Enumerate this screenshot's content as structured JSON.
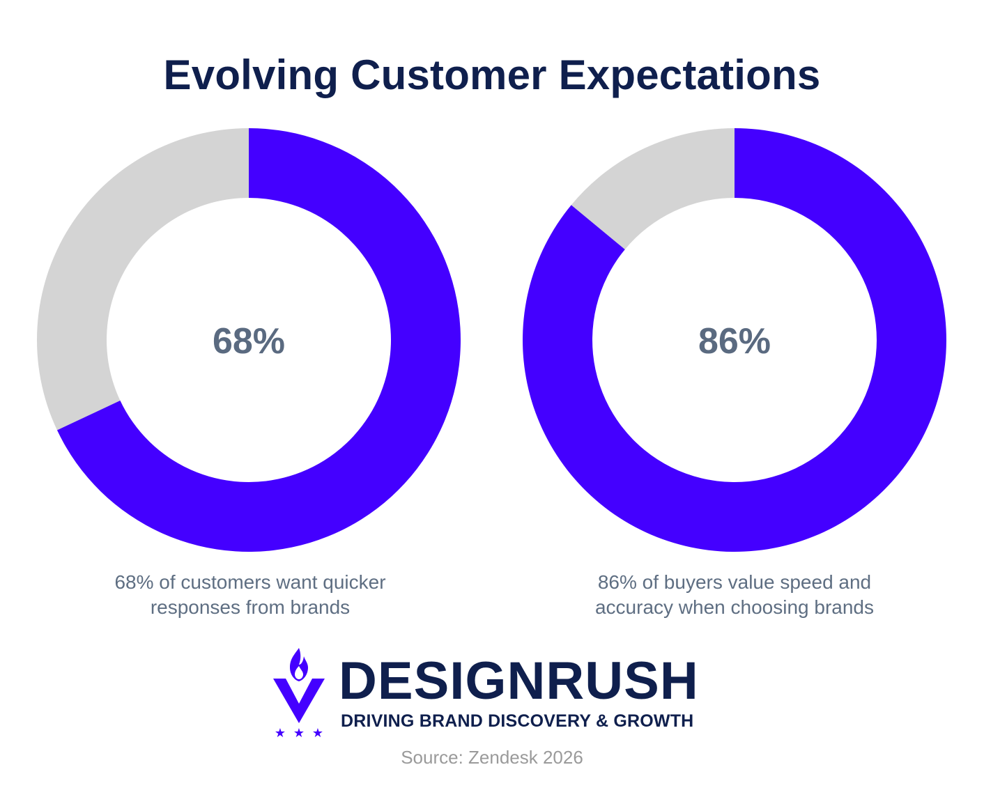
{
  "title": "Evolving Customer Expectations",
  "colors": {
    "accent": "#4400ff",
    "remainder": "#d4d4d4",
    "title": "#0f1f4d",
    "center_label": "#5a6a80",
    "caption": "#5e6e82",
    "source": "#9a9a9a"
  },
  "chart_data": [
    {
      "type": "pie",
      "subtype": "donut",
      "values": [
        68,
        32
      ],
      "center_label": "68%",
      "caption_lines": [
        "68% of customers want quicker",
        "responses from brands"
      ]
    },
    {
      "type": "pie",
      "subtype": "donut",
      "values": [
        86,
        14
      ],
      "center_label": "86%",
      "caption_lines": [
        "86% of buyers value speed and",
        "accuracy when choosing brands"
      ]
    }
  ],
  "logo": {
    "wordmark": "DESIGNRUSH",
    "tagline": "DRIVING BRAND DISCOVERY & GROWTH",
    "icon": "flame-v-stars-icon"
  },
  "source": "Source: Zendesk 2026"
}
